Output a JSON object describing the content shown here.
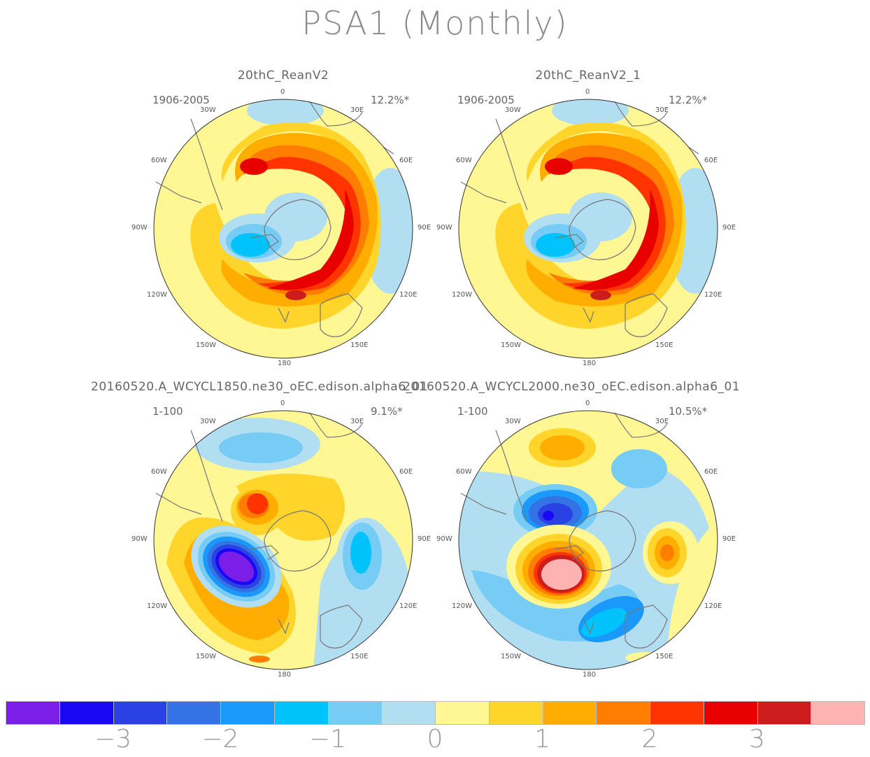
{
  "title": "PSA1 (Monthly)",
  "panels": [
    {
      "name": "20thC_ReanV2",
      "period": "1906-2005",
      "pct": "12.2%*"
    },
    {
      "name": "20thC_ReanV2_1",
      "period": "1906-2005",
      "pct": "12.2%*"
    },
    {
      "name": "20160520.A_WCYCL1850.ne30_oEC.edison.alpha6_01",
      "period": "1-100",
      "pct": "9.1%*"
    },
    {
      "name": "20160520.A_WCYCL2000.ne30_oEC.edison.alpha6_01",
      "period": "1-100",
      "pct": "10.5%*"
    }
  ],
  "lon_labels": {
    "n0": "0",
    "e30": "30E",
    "e60": "60E",
    "e90": "90E",
    "e120": "120E",
    "e150": "150E",
    "s180": "180",
    "w150": "150W",
    "w120": "120W",
    "w90": "90W",
    "w60": "60W",
    "w30": "30W"
  },
  "colorbar": {
    "colors": [
      "#7b1fe8",
      "#1a08f5",
      "#2a41e3",
      "#3473e6",
      "#1b99fa",
      "#00c3fb",
      "#76ccf5",
      "#b2def2",
      "#fff794",
      "#ffd42b",
      "#ffae00",
      "#ff7d00",
      "#ff3400",
      "#e80000",
      "#cc1c1c",
      "#ffb2b2"
    ],
    "labels": [
      "−3",
      "−2",
      "−1",
      "0",
      "1",
      "2",
      "3"
    ]
  }
}
